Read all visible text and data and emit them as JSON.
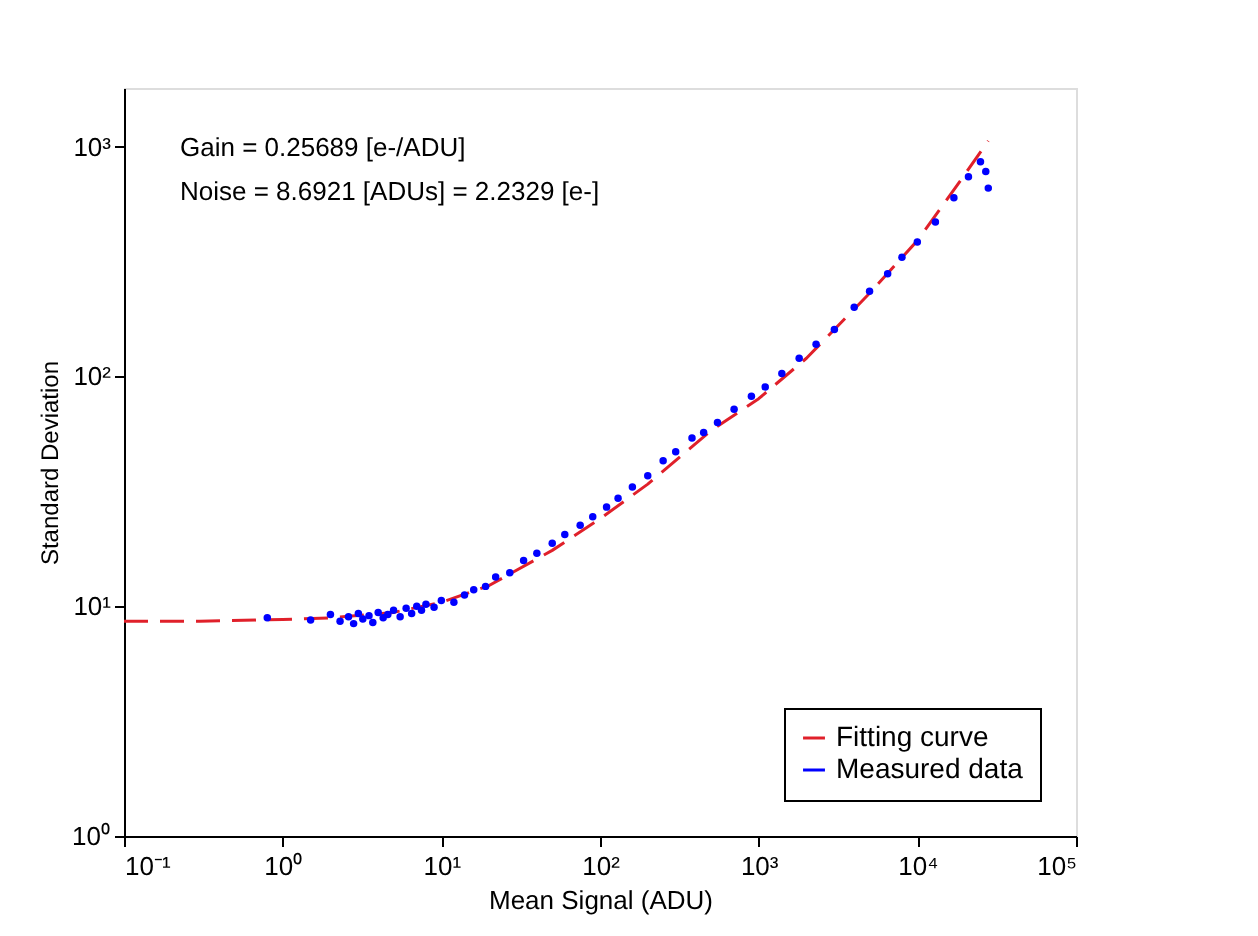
{
  "chart_data": {
    "type": "scatter",
    "xlabel": "Mean Signal (ADU)",
    "ylabel": "Standard Deviation",
    "annotations": [
      "Gain = 0.25689 [e-/ADU]",
      "Noise = 8.6921 [ADUs] = 2.2329 [e-]"
    ],
    "log": "xy",
    "grid": false,
    "legend": "bottom right",
    "xlim": [
      0.1,
      100000
    ],
    "ylim": [
      1,
      1800
    ],
    "xticks": [
      {
        "value": 0.1,
        "label": "10⁻¹"
      },
      {
        "value": 1,
        "label": "10⁰"
      },
      {
        "value": 10,
        "label": "10¹"
      },
      {
        "value": 100,
        "label": "10²"
      },
      {
        "value": 1000,
        "label": "10³"
      },
      {
        "value": 10000,
        "label": "10⁴"
      },
      {
        "value": 100000,
        "label": "10⁵"
      }
    ],
    "yticks": [
      {
        "value": 1,
        "label": "10⁰"
      },
      {
        "value": 10,
        "label": "10¹"
      },
      {
        "value": 100,
        "label": "10²"
      },
      {
        "value": 1000,
        "label": "10³"
      }
    ],
    "series": [
      {
        "name": "Fitting curve",
        "type": "line",
        "line_style": "dashed",
        "marker": "none",
        "color": "#e0202a",
        "x": [
          0.1,
          0.3,
          1,
          2,
          5,
          10,
          20,
          50,
          100,
          200,
          500,
          1000,
          2000,
          5000,
          10000,
          20000,
          28000
        ],
        "values": [
          8.6,
          8.6,
          8.75,
          8.9,
          9.4,
          10.4,
          12.3,
          17.5,
          24,
          34,
          58,
          80,
          120,
          230,
          390,
          760,
          1060
        ]
      },
      {
        "name": "Measured data",
        "marker": "circle",
        "color": "#0000ff",
        "x": [
          0.8,
          1.5,
          2.0,
          2.3,
          2.6,
          2.8,
          3.0,
          3.2,
          3.5,
          3.7,
          4.0,
          4.3,
          4.6,
          5.0,
          5.5,
          6.0,
          6.5,
          7.0,
          7.5,
          8.0,
          9.0,
          10,
          12,
          14,
          16,
          19,
          22,
          27,
          33,
          40,
          50,
          60,
          75,
          90,
          110,
          130,
          160,
          200,
          250,
          300,
          380,
          450,
          550,
          700,
          900,
          1100,
          1400,
          1800,
          2300,
          3000,
          4000,
          5000,
          6500,
          8000,
          10000,
          13000,
          17000,
          21000,
          25000,
          27000,
          28000
        ],
        "values": [
          8.9,
          8.7,
          9.2,
          8.6,
          9.0,
          8.4,
          9.3,
          8.8,
          9.1,
          8.5,
          9.4,
          8.9,
          9.2,
          9.6,
          9.0,
          9.8,
          9.3,
          10.0,
          9.6,
          10.2,
          9.9,
          10.6,
          10.4,
          11.2,
          11.8,
          12.2,
          13.4,
          14.0,
          15.8,
          17.0,
          18.8,
          20.5,
          22.5,
          24.5,
          27,
          29.5,
          33,
          37,
          43,
          47,
          54,
          57,
          63,
          72,
          82,
          90,
          103,
          120,
          138,
          160,
          200,
          235,
          280,
          330,
          385,
          470,
          600,
          740,
          860,
          780,
          660
        ]
      }
    ]
  }
}
